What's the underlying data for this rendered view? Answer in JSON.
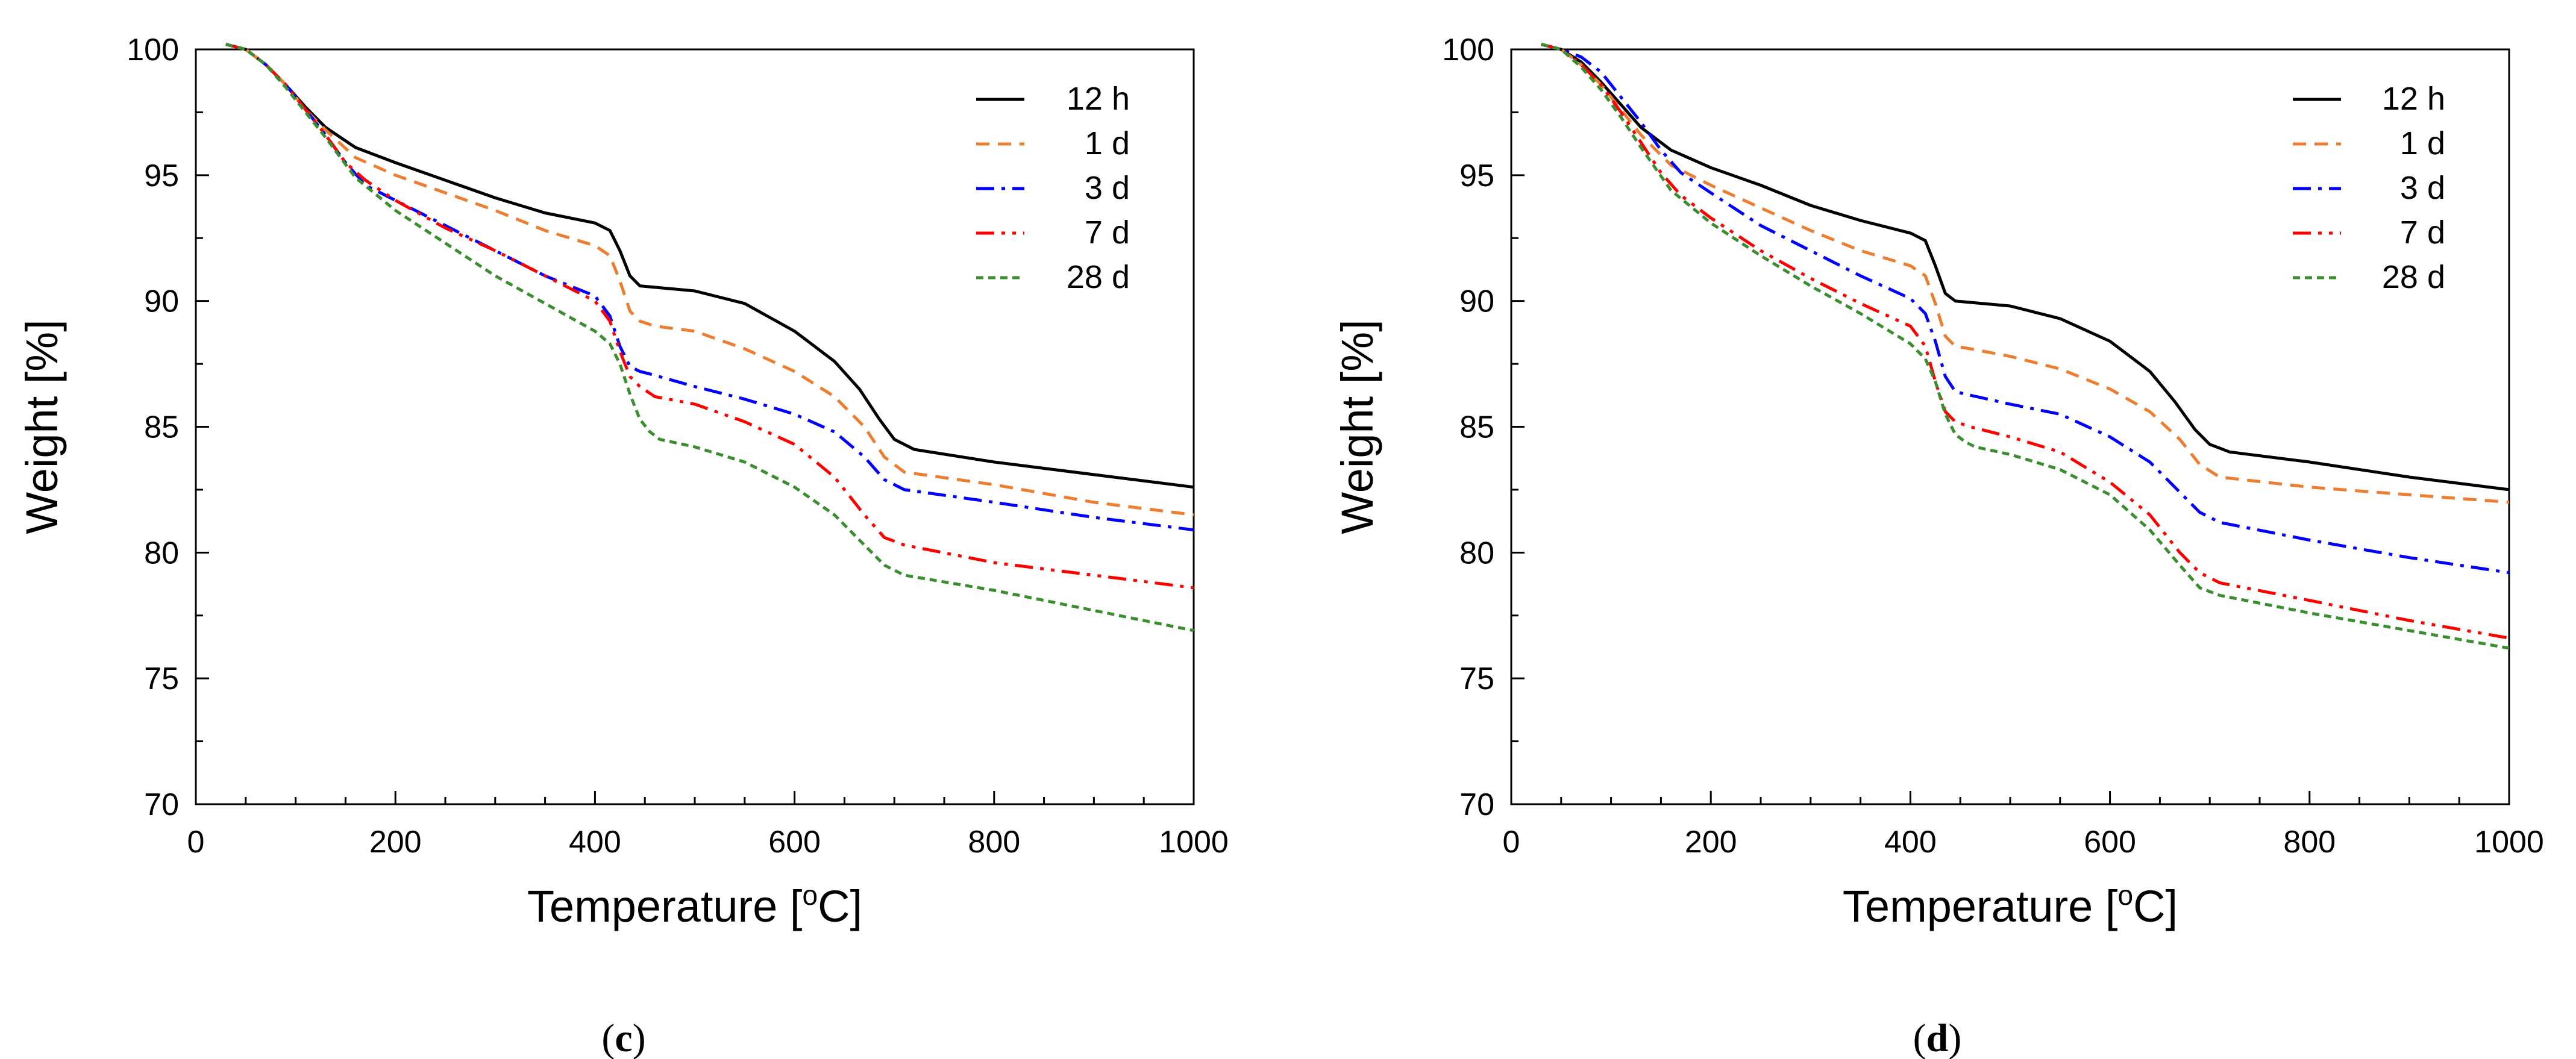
{
  "chart_data": [
    {
      "type": "line",
      "caption_open": "(",
      "caption_letter": "c",
      "caption_close": ")",
      "xlabel": "Temperature [",
      "xlabel_sup": "o",
      "xlabel_tail": "C]",
      "ylabel": "Weight [%]",
      "xlim": [
        0,
        1000
      ],
      "ylim": [
        70,
        100
      ],
      "xticks": [
        0,
        200,
        400,
        600,
        800,
        1000
      ],
      "yticks": [
        70,
        75,
        80,
        85,
        90,
        95,
        100
      ],
      "series": [
        {
          "name": "12 h",
          "color": "#000000",
          "dash": "solid",
          "x": [
            30,
            50,
            70,
            90,
            110,
            130,
            160,
            200,
            250,
            300,
            350,
            400,
            415,
            425,
            435,
            445,
            500,
            550,
            600,
            640,
            665,
            685,
            700,
            720,
            800,
            900,
            1000
          ],
          "y": [
            100.2,
            100,
            99.4,
            98.6,
            97.7,
            96.9,
            96.1,
            95.5,
            94.8,
            94.1,
            93.5,
            93.1,
            92.8,
            92.0,
            91.0,
            90.6,
            90.4,
            89.9,
            88.8,
            87.6,
            86.5,
            85.3,
            84.5,
            84.1,
            83.6,
            83.1,
            82.6
          ]
        },
        {
          "name": "1 d",
          "color": "#ED7D31",
          "dash": "dashed",
          "x": [
            30,
            50,
            70,
            90,
            110,
            130,
            160,
            200,
            250,
            300,
            350,
            400,
            415,
            425,
            435,
            445,
            460,
            500,
            550,
            600,
            640,
            670,
            690,
            710,
            800,
            900,
            1000
          ],
          "y": [
            100.2,
            100,
            99.4,
            98.6,
            97.6,
            96.8,
            95.7,
            95.0,
            94.3,
            93.6,
            92.8,
            92.2,
            91.8,
            90.8,
            89.6,
            89.2,
            89.0,
            88.8,
            88.1,
            87.2,
            86.2,
            85.0,
            83.8,
            83.2,
            82.7,
            82.0,
            81.5
          ]
        },
        {
          "name": "3 d",
          "color": "#0000FF",
          "dash": "dashdot",
          "x": [
            30,
            50,
            70,
            90,
            110,
            130,
            150,
            170,
            200,
            250,
            300,
            350,
            400,
            415,
            425,
            435,
            445,
            455,
            500,
            550,
            600,
            640,
            670,
            690,
            710,
            800,
            900,
            1000
          ],
          "y": [
            100.2,
            100,
            99.4,
            98.6,
            97.6,
            96.6,
            95.5,
            94.6,
            94.0,
            93.0,
            92.0,
            91.0,
            90.2,
            89.4,
            88.2,
            87.4,
            87.2,
            87.1,
            86.6,
            86.1,
            85.5,
            84.8,
            83.8,
            82.9,
            82.5,
            82.0,
            81.4,
            80.9
          ]
        },
        {
          "name": "7 d",
          "color": "#FF0000",
          "dash": "dashdotdot",
          "x": [
            30,
            50,
            70,
            90,
            110,
            130,
            150,
            170,
            200,
            250,
            300,
            350,
            400,
            415,
            425,
            435,
            445,
            460,
            500,
            550,
            600,
            640,
            670,
            690,
            710,
            800,
            900,
            1000
          ],
          "y": [
            100.2,
            100,
            99.4,
            98.6,
            97.6,
            96.6,
            95.5,
            94.8,
            94.0,
            92.9,
            92.0,
            91.0,
            90.0,
            89.2,
            88.0,
            87.0,
            86.6,
            86.2,
            85.9,
            85.2,
            84.3,
            83.0,
            81.5,
            80.6,
            80.3,
            79.6,
            79.1,
            78.6
          ]
        },
        {
          "name": "28 d",
          "color": "#3A8E2F",
          "dash": "dotted",
          "x": [
            30,
            50,
            70,
            90,
            110,
            130,
            160,
            200,
            250,
            300,
            350,
            400,
            415,
            425,
            435,
            445,
            455,
            465,
            500,
            550,
            600,
            640,
            670,
            690,
            710,
            800,
            900,
            1000
          ],
          "y": [
            100.2,
            100,
            99.4,
            98.5,
            97.5,
            96.5,
            94.9,
            93.6,
            92.3,
            91.0,
            89.9,
            88.8,
            88.3,
            87.5,
            86.3,
            85.3,
            84.8,
            84.5,
            84.2,
            83.6,
            82.6,
            81.5,
            80.3,
            79.5,
            79.1,
            78.5,
            77.7,
            76.9
          ]
        }
      ]
    },
    {
      "type": "line",
      "caption_open": "(",
      "caption_letter": "d",
      "caption_close": ")",
      "xlabel": "Temperature [",
      "xlabel_sup": "o",
      "xlabel_tail": "C]",
      "ylabel": "Weight [%]",
      "xlim": [
        0,
        1000
      ],
      "ylim": [
        70,
        100
      ],
      "xticks": [
        0,
        200,
        400,
        600,
        800,
        1000
      ],
      "yticks": [
        70,
        75,
        80,
        85,
        90,
        95,
        100
      ],
      "series": [
        {
          "name": "12 h",
          "color": "#000000",
          "dash": "solid",
          "x": [
            30,
            50,
            70,
            90,
            110,
            130,
            160,
            200,
            250,
            300,
            350,
            400,
            415,
            425,
            435,
            445,
            500,
            550,
            600,
            640,
            665,
            685,
            700,
            720,
            800,
            900,
            1000
          ],
          "y": [
            100.2,
            100,
            99.5,
            98.7,
            97.8,
            96.9,
            96.0,
            95.3,
            94.6,
            93.8,
            93.2,
            92.7,
            92.4,
            91.4,
            90.3,
            90.0,
            89.8,
            89.3,
            88.4,
            87.2,
            86.0,
            84.9,
            84.3,
            84.0,
            83.6,
            83.0,
            82.5
          ]
        },
        {
          "name": "1 d",
          "color": "#ED7D31",
          "dash": "dashed",
          "x": [
            30,
            50,
            70,
            90,
            110,
            130,
            160,
            200,
            250,
            300,
            350,
            400,
            415,
            425,
            435,
            445,
            460,
            500,
            550,
            600,
            640,
            670,
            690,
            710,
            800,
            900,
            1000
          ],
          "y": [
            100.2,
            100,
            99.4,
            98.6,
            97.6,
            96.6,
            95.4,
            94.6,
            93.7,
            92.8,
            92.0,
            91.4,
            91.0,
            89.9,
            88.6,
            88.2,
            88.1,
            87.8,
            87.3,
            86.5,
            85.6,
            84.5,
            83.5,
            83.0,
            82.6,
            82.3,
            82.0
          ]
        },
        {
          "name": "3 d",
          "color": "#0000FF",
          "dash": "dashdot",
          "x": [
            30,
            50,
            70,
            90,
            110,
            130,
            150,
            170,
            200,
            250,
            300,
            350,
            400,
            415,
            425,
            435,
            445,
            455,
            500,
            550,
            600,
            640,
            670,
            690,
            710,
            800,
            900,
            1000
          ],
          "y": [
            100.2,
            100,
            99.7,
            99.1,
            98.1,
            97.1,
            96.0,
            95.1,
            94.3,
            93.0,
            92.0,
            91.0,
            90.1,
            89.5,
            88.4,
            87.0,
            86.4,
            86.3,
            85.9,
            85.5,
            84.6,
            83.6,
            82.4,
            81.6,
            81.2,
            80.5,
            79.8,
            79.2
          ]
        },
        {
          "name": "7 d",
          "color": "#FF0000",
          "dash": "dashdotdot",
          "x": [
            30,
            50,
            70,
            90,
            110,
            130,
            150,
            170,
            200,
            250,
            300,
            350,
            400,
            415,
            425,
            435,
            445,
            460,
            500,
            550,
            600,
            640,
            670,
            690,
            710,
            800,
            900,
            1000
          ],
          "y": [
            100.2,
            100,
            99.4,
            98.6,
            97.5,
            96.3,
            95.1,
            94.2,
            93.3,
            92.0,
            90.9,
            89.9,
            89.0,
            88.2,
            86.8,
            85.6,
            85.2,
            85.0,
            84.6,
            84.0,
            82.8,
            81.5,
            80.0,
            79.2,
            78.8,
            78.1,
            77.3,
            76.6
          ]
        },
        {
          "name": "28 d",
          "color": "#3A8E2F",
          "dash": "dotted",
          "x": [
            30,
            50,
            70,
            90,
            110,
            130,
            160,
            200,
            250,
            300,
            350,
            400,
            415,
            425,
            435,
            445,
            455,
            465,
            500,
            550,
            600,
            640,
            670,
            690,
            710,
            800,
            900,
            1000
          ],
          "y": [
            100.2,
            100,
            99.3,
            98.4,
            97.3,
            96.1,
            94.4,
            93.1,
            91.8,
            90.6,
            89.5,
            88.3,
            87.7,
            86.8,
            85.5,
            84.7,
            84.4,
            84.2,
            83.9,
            83.3,
            82.3,
            80.9,
            79.5,
            78.6,
            78.3,
            77.6,
            76.9,
            76.2
          ]
        }
      ]
    }
  ]
}
